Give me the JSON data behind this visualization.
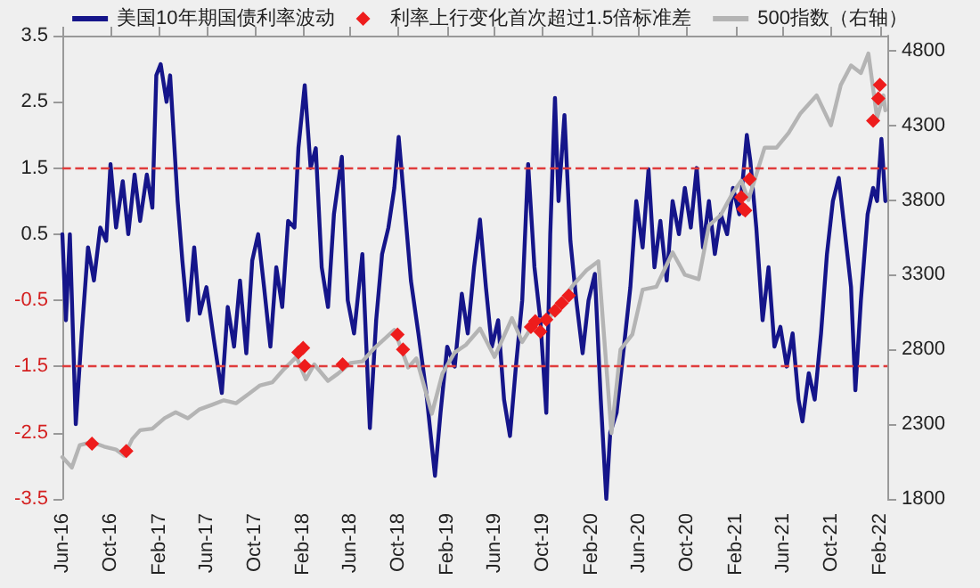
{
  "chart_data": {
    "type": "line",
    "x": [
      "2016-06-01",
      "2016-06-10",
      "2016-06-20",
      "2016-07-05",
      "2016-07-20",
      "2016-08-05",
      "2016-08-20",
      "2016-09-05",
      "2016-09-20",
      "2016-10-01",
      "2016-10-15",
      "2016-11-01",
      "2016-11-15",
      "2016-12-01",
      "2016-12-15",
      "2017-01-01",
      "2017-01-15",
      "2017-01-25",
      "2017-02-05",
      "2017-02-20",
      "2017-03-01",
      "2017-03-10",
      "2017-03-20",
      "2017-04-01",
      "2017-04-15",
      "2017-05-01",
      "2017-05-15",
      "2017-06-01",
      "2017-06-20",
      "2017-07-10",
      "2017-07-25",
      "2017-08-10",
      "2017-08-25",
      "2017-09-10",
      "2017-09-25",
      "2017-10-10",
      "2017-10-25",
      "2017-11-10",
      "2017-11-25",
      "2017-12-10",
      "2017-12-25",
      "2018-01-10",
      "2018-01-20",
      "2018-02-05",
      "2018-02-20",
      "2018-03-05",
      "2018-03-20",
      "2018-04-05",
      "2018-04-20",
      "2018-05-10",
      "2018-05-25",
      "2018-06-10",
      "2018-07-01",
      "2018-07-20",
      "2018-08-05",
      "2018-08-20",
      "2018-09-05",
      "2018-09-20",
      "2018-10-01",
      "2018-10-15",
      "2018-11-01",
      "2018-11-20",
      "2018-12-10",
      "2019-01-01",
      "2019-01-15",
      "2019-02-01",
      "2019-02-20",
      "2019-03-10",
      "2019-03-25",
      "2019-04-10",
      "2019-04-25",
      "2019-05-10",
      "2019-05-25",
      "2019-06-10",
      "2019-06-25",
      "2019-07-10",
      "2019-07-25",
      "2019-08-10",
      "2019-08-25",
      "2019-09-10",
      "2019-09-25",
      "2019-10-10",
      "2019-10-20",
      "2019-11-01",
      "2019-11-10",
      "2019-11-25",
      "2019-12-10",
      "2019-12-25",
      "2020-01-10",
      "2020-01-25",
      "2020-02-10",
      "2020-02-25",
      "2020-03-10",
      "2020-03-20",
      "2020-04-05",
      "2020-04-20",
      "2020-05-10",
      "2020-05-25",
      "2020-06-10",
      "2020-06-25",
      "2020-07-10",
      "2020-07-25",
      "2020-08-10",
      "2020-08-25",
      "2020-09-10",
      "2020-09-25",
      "2020-10-10",
      "2020-10-25",
      "2020-11-10",
      "2020-11-25",
      "2020-12-10",
      "2020-12-25",
      "2021-01-10",
      "2021-01-25",
      "2021-02-10",
      "2021-02-20",
      "2021-03-01",
      "2021-03-10",
      "2021-03-25",
      "2021-04-10",
      "2021-04-25",
      "2021-05-10",
      "2021-05-25",
      "2021-06-10",
      "2021-06-25",
      "2021-07-10",
      "2021-07-20",
      "2021-08-05",
      "2021-08-20",
      "2021-09-05",
      "2021-09-20",
      "2021-10-05",
      "2021-10-20",
      "2021-11-05",
      "2021-11-20",
      "2021-12-01",
      "2021-12-15",
      "2022-01-01",
      "2022-01-15",
      "2022-01-25",
      "2022-02-05",
      "2022-02-15"
    ],
    "series": [
      {
        "name": "美国10年期国债利率波动",
        "color": "#15158a",
        "values": [
          0.5,
          -0.8,
          0.5,
          -2.37,
          -1.0,
          0.3,
          -0.2,
          0.6,
          0.4,
          1.56,
          0.6,
          1.3,
          0.5,
          1.4,
          0.7,
          1.4,
          0.9,
          2.9,
          3.07,
          2.5,
          2.9,
          2.0,
          1.0,
          0.1,
          -0.8,
          0.3,
          -0.7,
          -0.3,
          -1.1,
          -1.9,
          -0.6,
          -1.2,
          -0.2,
          -1.3,
          0.1,
          0.5,
          -0.3,
          -1.2,
          0.0,
          -0.6,
          0.7,
          0.6,
          1.8,
          2.75,
          1.5,
          1.8,
          0.0,
          -0.6,
          0.8,
          1.67,
          -0.5,
          -1.0,
          0.2,
          -2.43,
          -0.8,
          0.2,
          0.6,
          1.2,
          1.97,
          1.0,
          -0.2,
          -1.0,
          -1.9,
          -3.15,
          -2.2,
          -1.2,
          -1.5,
          -0.4,
          -1.0,
          0.0,
          0.72,
          -0.3,
          -1.2,
          -0.8,
          -2.0,
          -2.55,
          -1.5,
          -0.5,
          1.56,
          0.0,
          -0.8,
          -2.2,
          0.5,
          2.56,
          1.0,
          2.3,
          0.4,
          -0.5,
          -1.3,
          -0.5,
          -0.1,
          -2.0,
          -3.5,
          -2.5,
          -2.2,
          -1.4,
          -0.3,
          1.0,
          0.3,
          1.48,
          0.0,
          0.7,
          -0.2,
          1.0,
          0.5,
          1.2,
          0.6,
          1.5,
          0.3,
          1.0,
          0.2,
          0.8,
          0.5,
          1.2,
          0.8,
          1.4,
          2.0,
          1.6,
          0.6,
          -0.8,
          0.0,
          -1.2,
          -0.9,
          -1.5,
          -1.0,
          -2.0,
          -2.33,
          -1.6,
          -2.0,
          -1.0,
          0.2,
          1.0,
          1.35,
          0.5,
          -0.3,
          -1.86,
          -0.5,
          0.8,
          1.2,
          1.0,
          1.94,
          1.0
        ]
      },
      {
        "name": "利率上行变化首次超过1.5倍标准差",
        "type": "scatter",
        "axis": "y2",
        "color": "#ee1c1c",
        "marker": "diamond",
        "x": [
          "2016-08-15",
          "2016-11-10",
          "2018-01-20",
          "2018-02-01",
          "2018-02-05",
          "2018-05-12",
          "2018-09-28",
          "2018-10-12",
          "2019-09-01",
          "2019-09-12",
          "2019-09-25",
          "2019-10-10",
          "2019-11-01",
          "2019-11-18",
          "2019-12-06",
          "2021-02-15",
          "2021-02-20",
          "2021-02-25",
          "2021-03-08",
          "2022-01-15",
          "2022-01-28",
          "2022-02-01"
        ],
        "values": [
          2170,
          2120,
          2780,
          2810,
          2690,
          2700,
          2900,
          2800,
          2950,
          2990,
          2920,
          3000,
          3060,
          3110,
          3160,
          3820,
          3740,
          3730,
          3940,
          4330,
          4480,
          4570
        ]
      },
      {
        "name": "500指数（右轴）",
        "type": "line",
        "axis": "y2",
        "color": "#b4b4b4",
        "x": [
          "2016-06-01",
          "2016-06-25",
          "2016-07-15",
          "2016-08-15",
          "2016-09-15",
          "2016-10-15",
          "2016-11-05",
          "2016-11-25",
          "2016-12-15",
          "2017-01-15",
          "2017-02-15",
          "2017-03-15",
          "2017-04-15",
          "2017-05-15",
          "2017-06-15",
          "2017-07-15",
          "2017-08-15",
          "2017-09-15",
          "2017-10-15",
          "2017-11-15",
          "2017-12-15",
          "2018-01-15",
          "2018-02-08",
          "2018-03-01",
          "2018-04-05",
          "2018-05-01",
          "2018-06-01",
          "2018-07-01",
          "2018-08-01",
          "2018-09-20",
          "2018-10-25",
          "2018-11-15",
          "2018-12-24",
          "2019-01-20",
          "2019-02-20",
          "2019-03-20",
          "2019-04-25",
          "2019-06-01",
          "2019-07-15",
          "2019-08-10",
          "2019-09-15",
          "2019-10-15",
          "2019-11-15",
          "2019-12-20",
          "2020-01-20",
          "2020-02-19",
          "2020-03-23",
          "2020-04-15",
          "2020-05-15",
          "2020-06-10",
          "2020-07-15",
          "2020-08-25",
          "2020-09-25",
          "2020-10-30",
          "2020-11-25",
          "2020-12-25",
          "2021-01-25",
          "2021-02-15",
          "2021-03-05",
          "2021-04-15",
          "2021-05-15",
          "2021-06-15",
          "2021-07-15",
          "2021-08-25",
          "2021-09-30",
          "2021-10-25",
          "2021-11-20",
          "2021-12-15",
          "2022-01-03",
          "2022-01-25",
          "2022-02-10",
          "2022-02-15"
        ],
        "values": [
          2080,
          2010,
          2160,
          2180,
          2150,
          2130,
          2090,
          2200,
          2260,
          2270,
          2340,
          2380,
          2340,
          2400,
          2430,
          2460,
          2440,
          2500,
          2560,
          2580,
          2670,
          2750,
          2600,
          2700,
          2590,
          2640,
          2710,
          2720,
          2810,
          2930,
          2680,
          2740,
          2370,
          2640,
          2780,
          2830,
          2940,
          2750,
          3010,
          2850,
          3000,
          3000,
          3120,
          3240,
          3330,
          3390,
          2240,
          2800,
          2900,
          3200,
          3220,
          3450,
          3300,
          3270,
          3630,
          3700,
          3850,
          3930,
          3800,
          4150,
          4150,
          4250,
          4380,
          4500,
          4300,
          4570,
          4700,
          4650,
          4780,
          4350,
          4500,
          4400
        ]
      }
    ],
    "xlim": [
      "2016-06-01",
      "2022-02-20"
    ],
    "xticks": [
      {
        "value": "2016-06",
        "label": "Jun-16"
      },
      {
        "value": "2016-10",
        "label": "Oct-16"
      },
      {
        "value": "2017-02",
        "label": "Feb-17"
      },
      {
        "value": "2017-06",
        "label": "Jun-17"
      },
      {
        "value": "2017-10",
        "label": "Oct-17"
      },
      {
        "value": "2018-02",
        "label": "Feb-18"
      },
      {
        "value": "2018-06",
        "label": "Jun-18"
      },
      {
        "value": "2018-10",
        "label": "Oct-18"
      },
      {
        "value": "2019-02",
        "label": "Feb-19"
      },
      {
        "value": "2019-06",
        "label": "Jun-19"
      },
      {
        "value": "2019-10",
        "label": "Oct-19"
      },
      {
        "value": "2020-02",
        "label": "Feb-20"
      },
      {
        "value": "2020-06",
        "label": "Jun-20"
      },
      {
        "value": "2020-10",
        "label": "Oct-20"
      },
      {
        "value": "2021-02",
        "label": "Feb-21"
      },
      {
        "value": "2021-06",
        "label": "Jun-21"
      },
      {
        "value": "2021-10",
        "label": "Oct-21"
      },
      {
        "value": "2022-02",
        "label": "Feb-22"
      }
    ],
    "ylim": [
      -3.5,
      3.5
    ],
    "yticks": [
      -3.5,
      -2.5,
      -1.5,
      -0.5,
      0.5,
      1.5,
      2.5,
      3.5
    ],
    "y2lim": [
      1800,
      4900
    ],
    "y2ticks": [
      1800,
      2300,
      2800,
      3300,
      3800,
      4300,
      4800
    ],
    "ref_lines": [
      {
        "axis": "y",
        "value": 1.5,
        "color": "#e03c3c",
        "line_style": "dashed"
      },
      {
        "axis": "y",
        "value": -1.5,
        "color": "#e03c3c",
        "line_style": "dashed"
      }
    ],
    "grid": false,
    "legend": "top",
    "marker": "none",
    "line_style": "solid"
  }
}
